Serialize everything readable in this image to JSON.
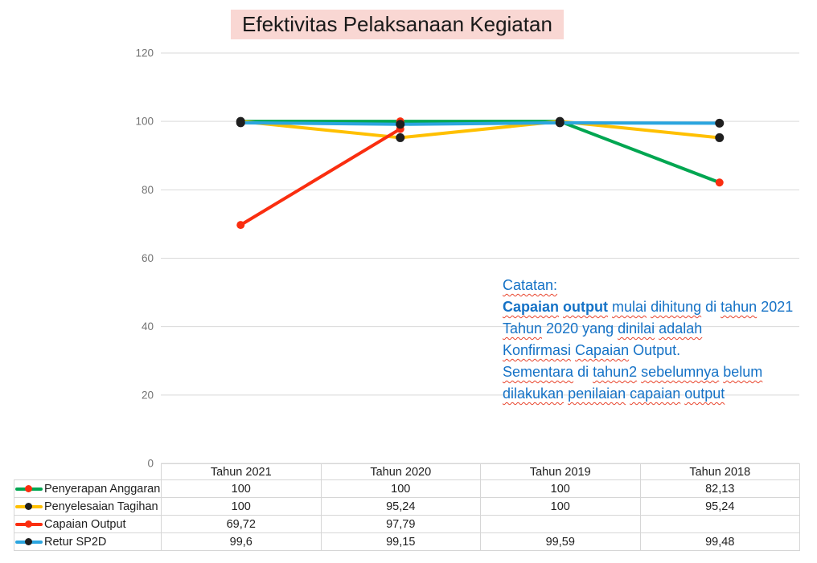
{
  "title": {
    "text": "Efektivitas Pelaksanaan Kegiatan",
    "bg": "#f9d7d3"
  },
  "chart_data": {
    "type": "line",
    "categories": [
      "Tahun 2021",
      "Tahun 2020",
      "Tahun 2019",
      "Tahun 2018"
    ],
    "series": [
      {
        "name": "Penyerapan Anggaran",
        "values": [
          100,
          100,
          100,
          82.13
        ],
        "color": "#00a651",
        "marker_color": "#fa2e10"
      },
      {
        "name": "Penyelesaian Tagihan",
        "values": [
          100,
          95.24,
          100,
          95.24
        ],
        "color": "#ffc000",
        "marker_color": "#1f1f1f"
      },
      {
        "name": "Capaian Output",
        "values": [
          69.72,
          97.79,
          null,
          null
        ],
        "color": "#fa2e10",
        "marker_color": "#fa2e10"
      },
      {
        "name": "Retur SP2D",
        "values": [
          99.6,
          99.15,
          99.59,
          99.48
        ],
        "color": "#2ba5df",
        "marker_color": "#1f1f1f"
      }
    ],
    "ylim": [
      0,
      120
    ],
    "yticks": [
      0,
      20,
      40,
      60,
      80,
      100,
      120
    ],
    "grid": true,
    "legend_position": "table-left",
    "gridline_color": "#d9d9d9",
    "tick_color": "#737373"
  },
  "table": {
    "columns": [
      "Tahun 2021",
      "Tahun 2020",
      "Tahun 2019",
      "Tahun 2018"
    ],
    "rows": [
      {
        "label": "Penyerapan Anggaran",
        "cells": [
          "100",
          "100",
          "100",
          "82,13"
        ]
      },
      {
        "label": "Penyelesaian Tagihan",
        "cells": [
          "100",
          "95,24",
          "100",
          "95,24"
        ]
      },
      {
        "label": "Capaian Output",
        "cells": [
          "69,72",
          "97,79",
          "",
          ""
        ]
      },
      {
        "label": "Retur SP2D",
        "cells": [
          "99,6",
          "99,15",
          "99,59",
          "99,48"
        ]
      }
    ]
  },
  "note": {
    "color": "#1572c6",
    "squiggle_color": "#e8442c",
    "lines": [
      [
        {
          "t": "Catatan:",
          "w": true
        }
      ],
      [
        {
          "t": "Capaian",
          "b": true,
          "w": true
        },
        {
          "t": " "
        },
        {
          "t": "output",
          "b": true,
          "w": true
        },
        {
          "t": " "
        },
        {
          "t": "mulai",
          "w": true
        },
        {
          "t": " "
        },
        {
          "t": "dihitung",
          "w": true
        },
        {
          "t": " di "
        },
        {
          "t": "tahun",
          "w": true
        },
        {
          "t": " 2021"
        }
      ],
      [
        {
          "t": "Tahun",
          "w": true
        },
        {
          "t": " 2020 yang "
        },
        {
          "t": "dinilai",
          "w": true
        },
        {
          "t": " "
        },
        {
          "t": "adalah",
          "w": true
        }
      ],
      [
        {
          "t": "Konfirmasi",
          "w": true
        },
        {
          "t": " "
        },
        {
          "t": "Capaian",
          "w": true
        },
        {
          "t": " Output."
        }
      ],
      [
        {
          "t": "Sementara",
          "w": true
        },
        {
          "t": " di "
        },
        {
          "t": "tahun2",
          "w": true
        },
        {
          "t": " "
        },
        {
          "t": "sebelumnya",
          "w": true
        },
        {
          "t": " "
        },
        {
          "t": "belum",
          "w": true
        }
      ],
      [
        {
          "t": "dilakukan",
          "w": true
        },
        {
          "t": " "
        },
        {
          "t": "penilaian",
          "w": true
        },
        {
          "t": " "
        },
        {
          "t": "capaian",
          "w": true
        },
        {
          "t": " "
        },
        {
          "t": "output",
          "w": true
        }
      ]
    ]
  }
}
